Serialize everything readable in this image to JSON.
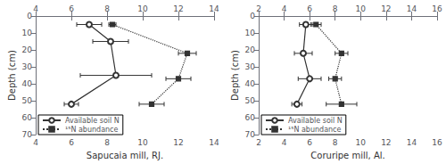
{
  "chart_data": [
    {
      "type": "line",
      "xlabel": "Sapucaia mill, RJ.",
      "ylabel": "Depth (cm)",
      "series": [
        {
          "name": "Available soil N",
          "color": "#333333",
          "line_style": "solid",
          "marker": "open circle",
          "x": [
            7.0,
            8.2,
            8.5,
            6.0
          ],
          "values": [
            5,
            15,
            35,
            52
          ],
          "xerr": [
            0.7,
            1.0,
            2.0,
            0.4
          ]
        },
        {
          "name": "¹⁵N abundance",
          "color": "#333333",
          "line_style": "dotted",
          "marker": "square",
          "x": [
            8.3,
            12.5,
            12.0,
            10.5
          ],
          "values": [
            5,
            22,
            37,
            52
          ],
          "xerr": [
            0.2,
            0.5,
            0.7,
            0.7
          ]
        }
      ],
      "xlim": [
        4,
        14
      ],
      "xticks": [
        4,
        6,
        8,
        10,
        12,
        14
      ],
      "ylim": [
        70,
        0
      ],
      "yticks": [
        0,
        10,
        20,
        30,
        40,
        50,
        60,
        70
      ],
      "grid": false,
      "legend": "lower left"
    },
    {
      "type": "line",
      "xlabel": "Coruripe mill, Al.",
      "ylabel": "Depth (cm)",
      "series": [
        {
          "name": "Available soil N",
          "color": "#333333",
          "line_style": "solid",
          "marker": "open circle",
          "x": [
            5.7,
            5.5,
            6.0,
            5.0
          ],
          "values": [
            5,
            22,
            37,
            52
          ],
          "xerr": [
            0.5,
            0.7,
            0.9,
            0.4
          ]
        },
        {
          "name": "¹⁵N abundance",
          "color": "#333333",
          "line_style": "dotted",
          "marker": "square",
          "x": [
            6.5,
            8.5,
            8.0,
            8.5
          ],
          "values": [
            5,
            22,
            37,
            52
          ],
          "xerr": [
            0.4,
            0.5,
            0.5,
            1.2
          ]
        }
      ],
      "xlim": [
        2,
        16
      ],
      "xticks": [
        2,
        4,
        6,
        8,
        10,
        12,
        14,
        16
      ],
      "ylim": [
        70,
        0
      ],
      "yticks": [
        0,
        10,
        20,
        30,
        40,
        50,
        60,
        70
      ],
      "grid": false,
      "legend": "lower left"
    }
  ]
}
